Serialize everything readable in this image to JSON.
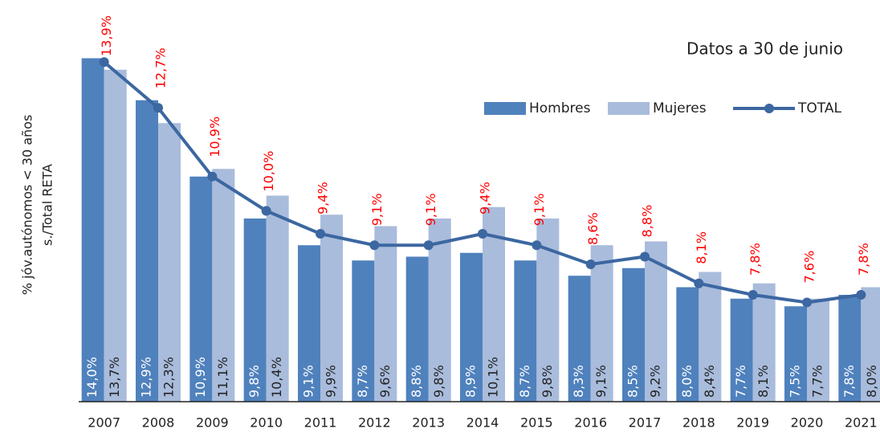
{
  "chart_data": {
    "type": "bar_line",
    "annotation": "Datos a 30 de junio",
    "ylabel": [
      "% jóv.autónomos < 30 años",
      "s./Total RETA"
    ],
    "categories": [
      "2007",
      "2008",
      "2009",
      "2010",
      "2011",
      "2012",
      "2013",
      "2014",
      "2015",
      "2016",
      "2017",
      "2018",
      "2019",
      "2020",
      "2021"
    ],
    "ylim": [
      5,
      15
    ],
    "legend": "top-right",
    "series": [
      {
        "name": "Hombres",
        "type": "bar",
        "color": "#4f81bd",
        "values": [
          14.0,
          12.9,
          10.9,
          9.8,
          9.1,
          8.7,
          8.8,
          8.9,
          8.7,
          8.3,
          8.5,
          8.0,
          7.7,
          7.5,
          7.8
        ],
        "value_labels": [
          "14,0%",
          "12,9%",
          "10,9%",
          "9,8%",
          "9,1%",
          "8,7%",
          "8,8%",
          "8,9%",
          "8,7%",
          "8,3%",
          "8,5%",
          "8,0%",
          "7,7%",
          "7,5%",
          "7,8%"
        ]
      },
      {
        "name": "Mujeres",
        "type": "bar",
        "color": "#a9bcdc",
        "values": [
          13.7,
          12.3,
          11.1,
          10.4,
          9.9,
          9.6,
          9.8,
          10.1,
          9.8,
          9.1,
          9.2,
          8.4,
          8.1,
          7.7,
          8.0
        ],
        "value_labels": [
          "13,7%",
          "12,3%",
          "11,1%",
          "10,4%",
          "9,9%",
          "9,6%",
          "9,8%",
          "10,1%",
          "9,8%",
          "9,1%",
          "9,2%",
          "8,4%",
          "8,1%",
          "7,7%",
          "8,0%"
        ]
      },
      {
        "name": "TOTAL",
        "type": "line",
        "color": "#3c67a1",
        "values": [
          13.9,
          12.7,
          10.9,
          10.0,
          9.4,
          9.1,
          9.1,
          9.4,
          9.1,
          8.6,
          8.8,
          8.1,
          7.8,
          7.6,
          7.8
        ],
        "value_labels": [
          "13,9%",
          "12,7%",
          "10,9%",
          "10,0%",
          "9,4%",
          "9,1%",
          "9,1%",
          "9,4%",
          "9,1%",
          "8,6%",
          "8,8%",
          "8,1%",
          "7,8%",
          "7,6%",
          "7,8%"
        ]
      }
    ]
  }
}
